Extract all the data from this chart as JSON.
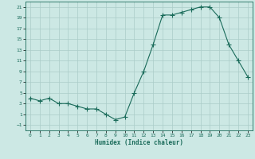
{
  "xlabel": "Humidex (Indice chaleur)",
  "x": [
    0,
    1,
    2,
    3,
    4,
    5,
    6,
    7,
    8,
    9,
    10,
    11,
    12,
    13,
    14,
    15,
    16,
    17,
    18,
    19,
    20,
    21,
    22,
    23
  ],
  "y": [
    4,
    3.5,
    4,
    3,
    3,
    2.5,
    2,
    2,
    1,
    0,
    0.5,
    5,
    9,
    14,
    19.5,
    19.5,
    20,
    20.5,
    21,
    21,
    19,
    14,
    11,
    8
  ],
  "line_color": "#1a6b5a",
  "marker": "+",
  "marker_size": 4,
  "bg_color": "#cce8e4",
  "grid_color": "#aaccc8",
  "ylim": [
    -2,
    22
  ],
  "xlim": [
    -0.5,
    23.5
  ],
  "yticks": [
    -1,
    1,
    3,
    5,
    7,
    9,
    11,
    13,
    15,
    17,
    19,
    21
  ],
  "xticks": [
    0,
    1,
    2,
    3,
    4,
    5,
    6,
    7,
    8,
    9,
    10,
    11,
    12,
    13,
    14,
    15,
    16,
    17,
    18,
    19,
    20,
    21,
    22,
    23
  ],
  "xlabel_fontsize": 5.5,
  "tick_fontsize": 4.5
}
